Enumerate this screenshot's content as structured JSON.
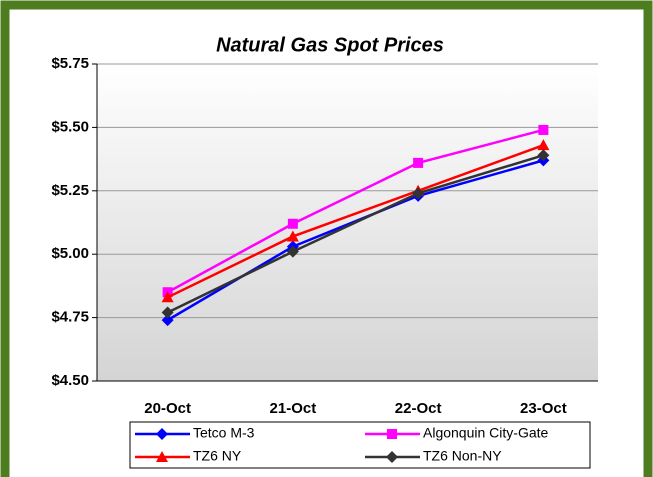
{
  "chart_data": {
    "type": "line",
    "title": "Natural Gas Spot Prices",
    "categories": [
      "20-Oct",
      "21-Oct",
      "22-Oct",
      "23-Oct"
    ],
    "series": [
      {
        "name": "Tetco M-3",
        "color": "#0000ff",
        "marker": "diamond",
        "values": [
          4.74,
          5.03,
          5.23,
          5.37
        ]
      },
      {
        "name": "Algonquin City-Gate",
        "color": "#ff00ff",
        "marker": "square",
        "values": [
          4.85,
          5.12,
          5.36,
          5.49
        ]
      },
      {
        "name": "TZ6 NY",
        "color": "#ff0000",
        "marker": "triangle",
        "values": [
          4.83,
          5.07,
          5.25,
          5.43
        ]
      },
      {
        "name": "TZ6 Non-NY",
        "color": "#333333",
        "marker": "diamond",
        "values": [
          4.77,
          5.01,
          5.24,
          5.39
        ]
      }
    ],
    "ylim": [
      4.5,
      5.75
    ],
    "yticks": [
      {
        "value": 4.5,
        "label": "$4.50"
      },
      {
        "value": 4.75,
        "label": "$4.75"
      },
      {
        "value": 5.0,
        "label": "$5.00"
      },
      {
        "value": 5.25,
        "label": "$5.25"
      },
      {
        "value": 5.5,
        "label": "$5.50"
      },
      {
        "value": 5.75,
        "label": "$5.75"
      }
    ],
    "grid": true
  }
}
